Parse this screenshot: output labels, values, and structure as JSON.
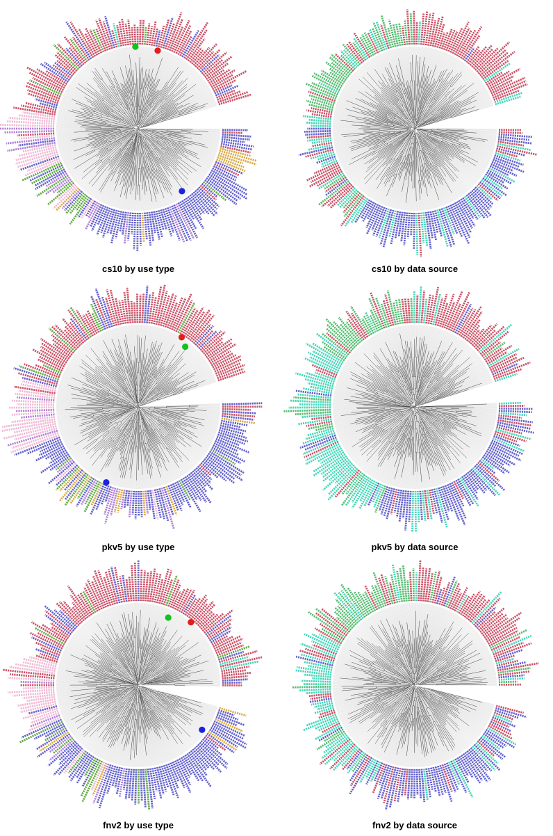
{
  "page": {
    "background": "#ffffff"
  },
  "figure": {
    "columns": 2,
    "palette": {
      "red": "#c8485e",
      "blue": "#5a57c9",
      "pink": "#efb5d2",
      "violet": "#ad7ad6",
      "green": "#5aa83c",
      "sgreen": "#4db868",
      "orange": "#d8a73f",
      "teal": "#3bd4b4",
      "fan": "#d9d9d9",
      "branch": "#151515"
    },
    "dot_colors": {
      "green": "#13c21b",
      "red": "#e51c1c",
      "blue": "#1b23e0"
    },
    "panels": [
      {
        "caption": "cs10 by use type",
        "seed": 11,
        "leaves": 215,
        "gap_center_deg": 8,
        "gap_width_deg": 16,
        "segments": [
          {
            "from": 16,
            "to": 60,
            "colors": {
              "red": 9,
              "blue": 0.8,
              "green": 0.4
            }
          },
          {
            "from": 60,
            "to": 125,
            "colors": {
              "red": 8,
              "blue": 1.2,
              "green": 0.6,
              "teal": 0.3
            }
          },
          {
            "from": 125,
            "to": 170,
            "colors": {
              "red": 6,
              "blue": 2.5,
              "green": 0.8
            }
          },
          {
            "from": 170,
            "to": 204,
            "colors": {
              "pink": 7,
              "violet": 1.5,
              "red": 0.8,
              "blue": 0.8
            },
            "len": [
              28,
              80
            ]
          },
          {
            "from": 204,
            "to": 238,
            "colors": {
              "blue": 3,
              "violet": 2,
              "green": 2,
              "orange": 1.5,
              "pink": 1
            }
          },
          {
            "from": 238,
            "to": 300,
            "colors": {
              "blue": 8,
              "violet": 1,
              "green": 0.5,
              "orange": 0.5
            }
          },
          {
            "from": 300,
            "to": 336,
            "colors": {
              "blue": 8.5,
              "red": 0.7,
              "green": 0.4
            }
          },
          {
            "from": 336,
            "to": 348,
            "colors": {
              "orange": 4,
              "blue": 2,
              "red": 1
            }
          },
          {
            "from": 348,
            "to": 16,
            "colors": {
              "red": 3,
              "blue": 3
            }
          }
        ],
        "dots": [
          {
            "angle": 92,
            "r": 1.0,
            "color": "green"
          },
          {
            "angle": 76,
            "r": 0.98,
            "color": "red"
          },
          {
            "angle": 305,
            "r": 0.93,
            "color": "blue"
          }
        ]
      },
      {
        "caption": "cs10 by data source",
        "seed": 23,
        "leaves": 215,
        "gap_center_deg": 8,
        "gap_width_deg": 16,
        "segments": [
          {
            "from": 16,
            "to": 95,
            "colors": {
              "red": 7,
              "teal": 1.6,
              "sgreen": 1,
              "blue": 0.4
            }
          },
          {
            "from": 95,
            "to": 170,
            "colors": {
              "sgreen": 7,
              "red": 1.6,
              "teal": 1
            }
          },
          {
            "from": 170,
            "to": 232,
            "colors": {
              "red": 4,
              "teal": 3,
              "sgreen": 1,
              "blue": 1,
              "pink": 0.5
            }
          },
          {
            "from": 232,
            "to": 300,
            "colors": {
              "blue": 7,
              "teal": 2,
              "red": 1
            }
          },
          {
            "from": 300,
            "to": 344,
            "colors": {
              "blue": 6,
              "teal": 2.5,
              "sgreen": 0.6,
              "red": 0.8
            }
          },
          {
            "from": 344,
            "to": 16,
            "colors": {
              "red": 3.5,
              "teal": 2,
              "blue": 2.5
            }
          }
        ],
        "dots": []
      },
      {
        "caption": "pkv5 by use type",
        "seed": 37,
        "leaves": 215,
        "gap_center_deg": 10,
        "gap_width_deg": 15,
        "segments": [
          {
            "from": 18,
            "to": 70,
            "colors": {
              "red": 9,
              "blue": 0.7,
              "green": 0.3
            }
          },
          {
            "from": 70,
            "to": 130,
            "colors": {
              "red": 8,
              "blue": 1.3,
              "green": 0.6
            }
          },
          {
            "from": 130,
            "to": 167,
            "colors": {
              "red": 5.5,
              "blue": 2.5,
              "green": 0.8,
              "pink": 0.4
            }
          },
          {
            "from": 167,
            "to": 200,
            "colors": {
              "pink": 7,
              "violet": 1.4,
              "red": 0.8,
              "blue": 0.6
            },
            "len": [
              28,
              80
            ]
          },
          {
            "from": 200,
            "to": 245,
            "colors": {
              "blue": 4,
              "orange": 2,
              "green": 1.6,
              "violet": 1.4,
              "pink": 0.8
            }
          },
          {
            "from": 245,
            "to": 290,
            "colors": {
              "blue": 6,
              "violet": 2.2,
              "orange": 1,
              "pink": 0.8
            }
          },
          {
            "from": 290,
            "to": 352,
            "colors": {
              "blue": 8.5,
              "green": 0.5,
              "red": 0.6
            }
          },
          {
            "from": 352,
            "to": 18,
            "colors": {
              "red": 2.5,
              "blue": 3.5,
              "orange": 0.6
            }
          }
        ],
        "dots": [
          {
            "angle": 58,
            "r": 1.0,
            "color": "red"
          },
          {
            "angle": 52,
            "r": 0.93,
            "color": "green"
          },
          {
            "angle": 247,
            "r": 1.0,
            "color": "blue"
          }
        ]
      },
      {
        "caption": "pkv5 by data source",
        "seed": 41,
        "leaves": 215,
        "gap_center_deg": 10,
        "gap_width_deg": 14,
        "segments": [
          {
            "from": 17,
            "to": 90,
            "colors": {
              "red": 7.5,
              "teal": 1.3,
              "sgreen": 0.8,
              "blue": 0.5
            }
          },
          {
            "from": 90,
            "to": 148,
            "colors": {
              "sgreen": 7,
              "red": 1.4,
              "teal": 1.2
            }
          },
          {
            "from": 148,
            "to": 250,
            "colors": {
              "teal": 7,
              "red": 1.4,
              "sgreen": 0.8,
              "blue": 0.8
            }
          },
          {
            "from": 250,
            "to": 340,
            "colors": {
              "blue": 7,
              "teal": 1.8,
              "red": 0.9
            }
          },
          {
            "from": 340,
            "to": 17,
            "colors": {
              "red": 3,
              "blue": 3,
              "teal": 1.5
            }
          }
        ],
        "dots": []
      },
      {
        "caption": "fnv2 by use type",
        "seed": 53,
        "leaves": 215,
        "gap_center_deg": 352,
        "gap_width_deg": 14,
        "segments": [
          {
            "from": 345,
            "to": 45,
            "colors": {
              "red": 6,
              "blue": 2.5,
              "teal": 0.6,
              "green": 0.5
            }
          },
          {
            "from": 45,
            "to": 130,
            "colors": {
              "red": 8.5,
              "blue": 0.9,
              "green": 0.5
            }
          },
          {
            "from": 130,
            "to": 165,
            "colors": {
              "red": 5,
              "blue": 3,
              "green": 0.8,
              "violet": 0.5
            }
          },
          {
            "from": 165,
            "to": 205,
            "colors": {
              "pink": 6,
              "violet": 2.5,
              "red": 0.8,
              "blue": 0.8
            },
            "len": [
              26,
              78
            ]
          },
          {
            "from": 205,
            "to": 252,
            "colors": {
              "blue": 4,
              "orange": 1.8,
              "green": 1.6,
              "violet": 1.2,
              "pink": 0.8
            }
          },
          {
            "from": 252,
            "to": 322,
            "colors": {
              "blue": 8.5,
              "violet": 0.8,
              "green": 0.5
            }
          },
          {
            "from": 322,
            "to": 345,
            "colors": {
              "blue": 5,
              "orange": 1.8,
              "red": 0.8,
              "green": 0.6
            }
          }
        ],
        "dots": [
          {
            "angle": 66,
            "r": 0.9,
            "color": "green"
          },
          {
            "angle": 50,
            "r": 1.0,
            "color": "red"
          },
          {
            "angle": 325,
            "r": 0.95,
            "color": "blue"
          }
        ]
      },
      {
        "caption": "fnv2 by data source",
        "seed": 67,
        "leaves": 215,
        "gap_center_deg": 353,
        "gap_width_deg": 13,
        "segments": [
          {
            "from": 346,
            "to": 90,
            "colors": {
              "red": 7,
              "teal": 1.4,
              "sgreen": 0.9,
              "blue": 0.6
            }
          },
          {
            "from": 90,
            "to": 150,
            "colors": {
              "sgreen": 6.5,
              "red": 1.6,
              "teal": 1
            }
          },
          {
            "from": 150,
            "to": 235,
            "colors": {
              "teal": 6,
              "red": 1.8,
              "sgreen": 0.8,
              "blue": 1
            }
          },
          {
            "from": 235,
            "to": 330,
            "colors": {
              "blue": 7,
              "teal": 1.6,
              "red": 0.9
            }
          },
          {
            "from": 330,
            "to": 346,
            "colors": {
              "red": 3,
              "blue": 3,
              "teal": 1
            }
          }
        ],
        "dots": []
      }
    ]
  }
}
